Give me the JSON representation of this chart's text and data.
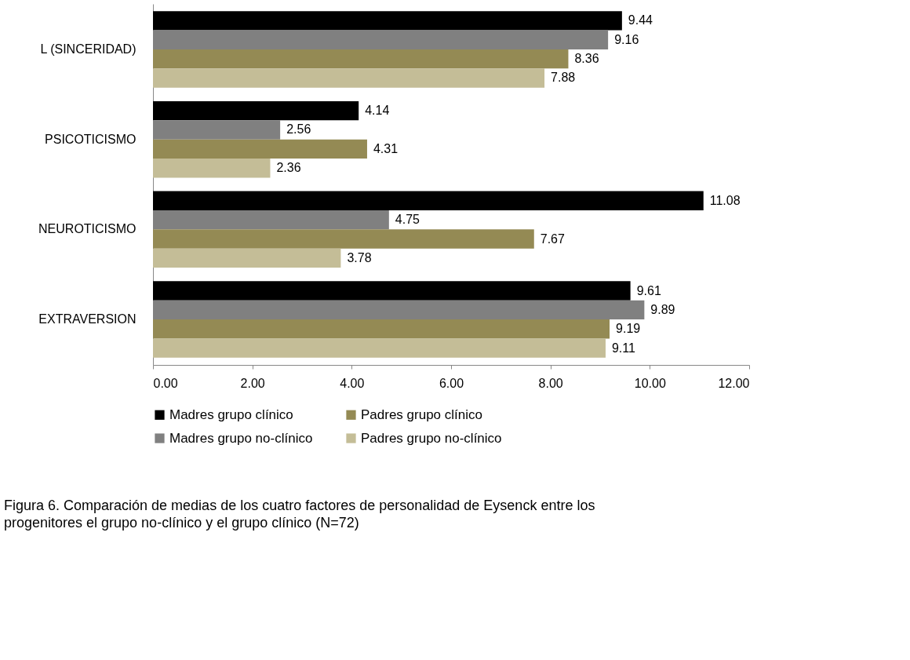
{
  "chart_data": {
    "type": "bar",
    "orientation": "horizontal",
    "categories": [
      "L (SINCERIDAD)",
      "PSICOTICISMO",
      "NEUROTICISMO",
      "EXTRAVERSION"
    ],
    "series": [
      {
        "name": "Madres grupo clínico",
        "color": "#000000",
        "values": [
          9.44,
          4.14,
          11.08,
          9.61
        ]
      },
      {
        "name": "Madres grupo no-clínico",
        "color": "#808080",
        "values": [
          9.16,
          2.56,
          4.75,
          9.89
        ]
      },
      {
        "name": "Padres grupo clínico",
        "color": "#948a54",
        "values": [
          8.36,
          4.31,
          7.67,
          9.19
        ]
      },
      {
        "name": "Padres grupo no-clínico",
        "color": "#c4bd97",
        "values": [
          7.88,
          2.36,
          3.78,
          9.11
        ]
      }
    ],
    "xlim": [
      0,
      12
    ],
    "xticks": [
      {
        "value": 0,
        "label": "0.00"
      },
      {
        "value": 2,
        "label": "2.00"
      },
      {
        "value": 4,
        "label": "4.00"
      },
      {
        "value": 6,
        "label": "6.00"
      },
      {
        "value": 8,
        "label": "8.00"
      },
      {
        "value": 10,
        "label": "10.00"
      },
      {
        "value": 12,
        "label": "12.00"
      }
    ],
    "grid": false,
    "legend": "bottom",
    "data_labels": true,
    "annotations": [
      "Figura 6. Comparación de medias de los cuatro factores de personalidad de Eysenck entre los progenitores el grupo no-clínico y el grupo clínico (N=72)"
    ]
  }
}
